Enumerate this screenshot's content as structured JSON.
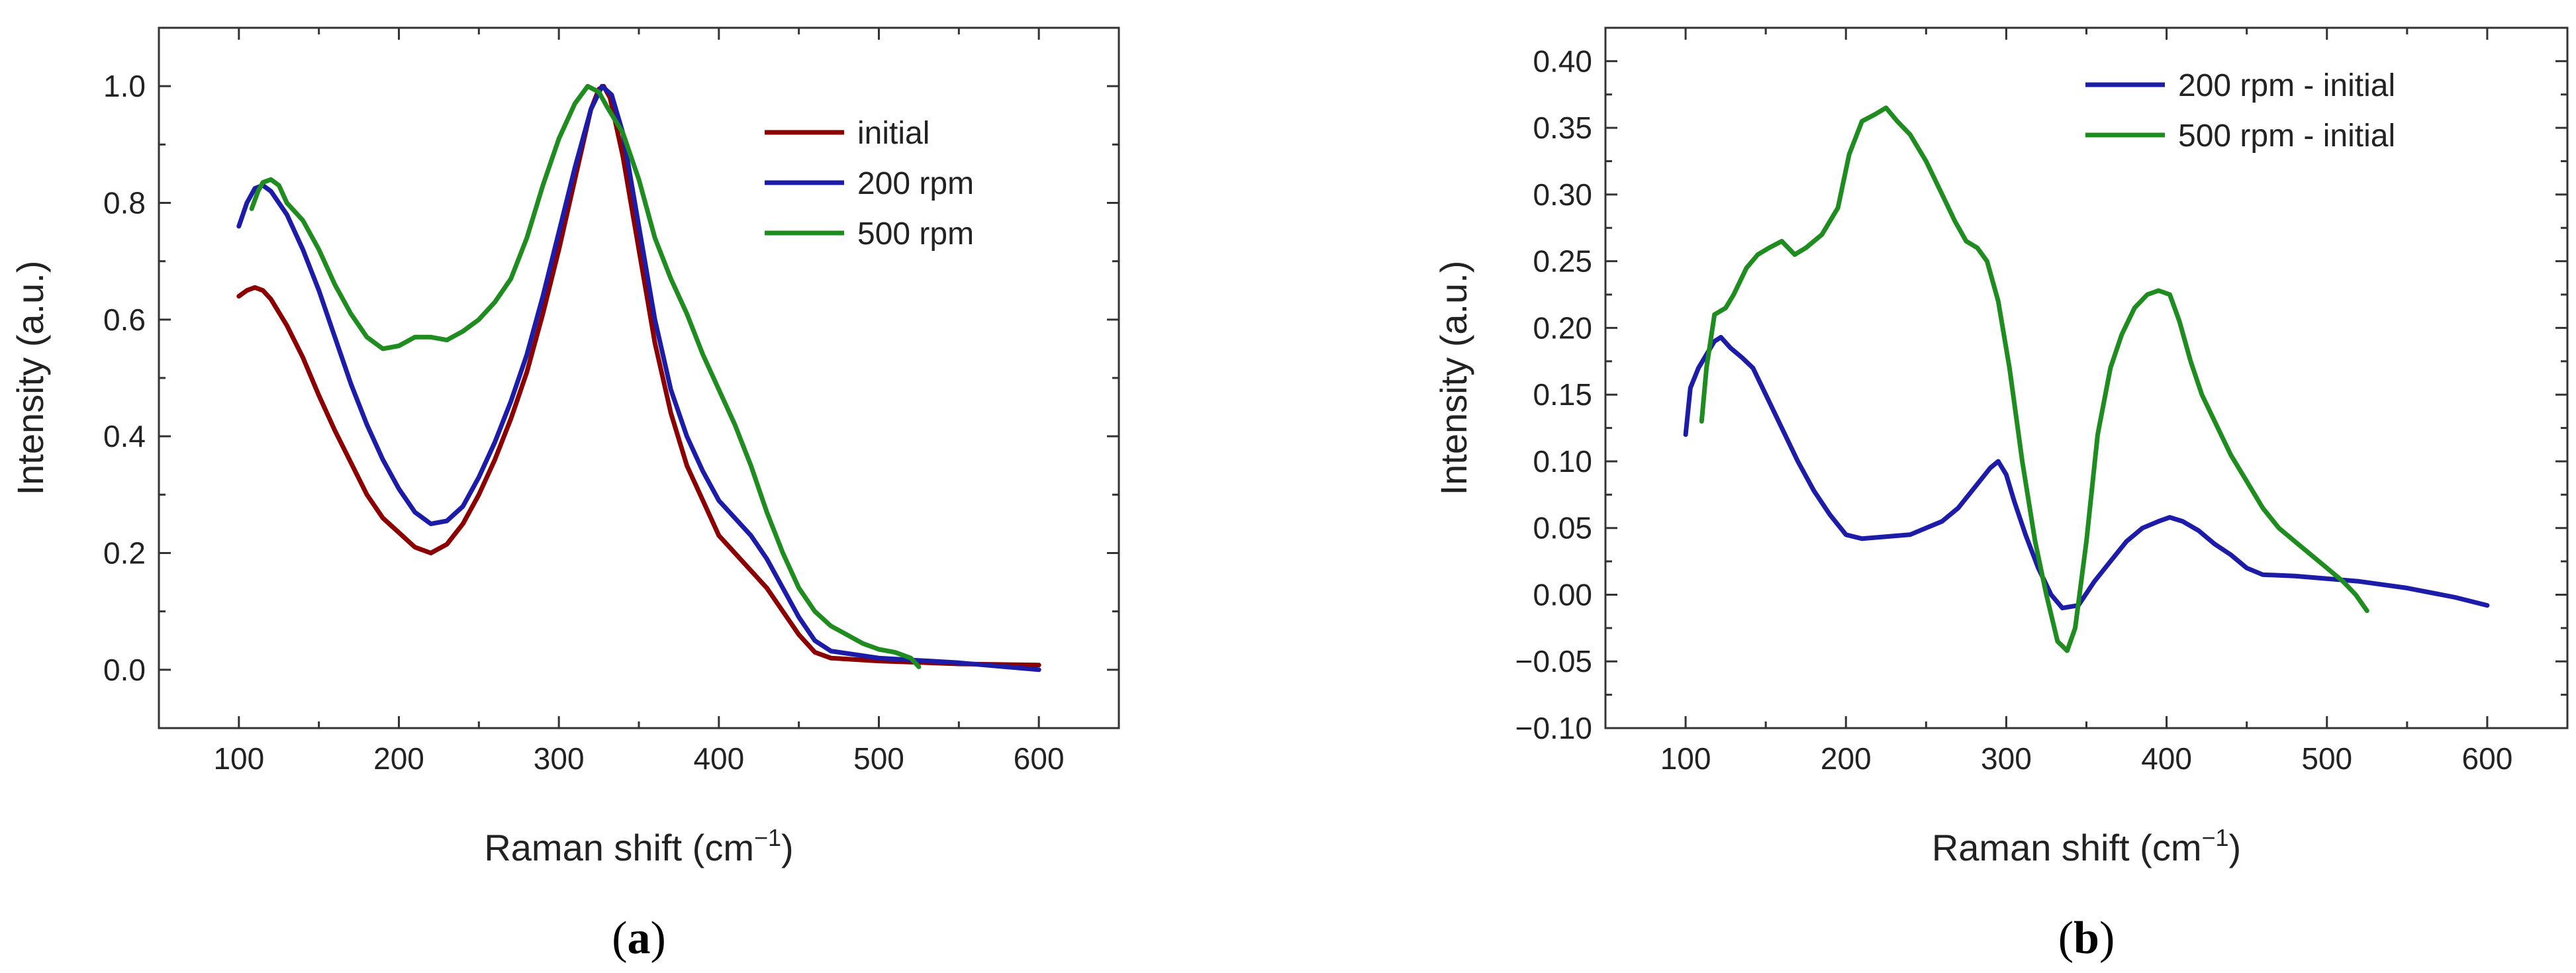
{
  "chart_data": [
    {
      "type": "line",
      "panel_label": "a",
      "xlabel": "Raman shift (cm",
      "xlabel_sup": "−1",
      "xlabel_close": ")",
      "ylabel": "Intensity (a.u.)",
      "xlim": [
        50,
        650
      ],
      "ylim": [
        -0.1,
        1.1
      ],
      "xticks": [
        100,
        200,
        300,
        400,
        500,
        600
      ],
      "yticks": [
        0.0,
        0.2,
        0.4,
        0.6,
        0.8,
        1.0
      ],
      "ytick_labels": [
        "0.0",
        "0.2",
        "0.4",
        "0.6",
        "0.8",
        "1.0"
      ],
      "legend_position": "upper-right",
      "series": [
        {
          "name": "initial",
          "color": "#8b0000",
          "points": [
            [
              100,
              0.64
            ],
            [
              105,
              0.65
            ],
            [
              110,
              0.655
            ],
            [
              115,
              0.65
            ],
            [
              120,
              0.635
            ],
            [
              130,
              0.59
            ],
            [
              140,
              0.535
            ],
            [
              150,
              0.47
            ],
            [
              160,
              0.41
            ],
            [
              170,
              0.355
            ],
            [
              180,
              0.3
            ],
            [
              190,
              0.26
            ],
            [
              200,
              0.235
            ],
            [
              210,
              0.21
            ],
            [
              220,
              0.2
            ],
            [
              230,
              0.215
            ],
            [
              240,
              0.25
            ],
            [
              250,
              0.3
            ],
            [
              260,
              0.36
            ],
            [
              270,
              0.43
            ],
            [
              280,
              0.51
            ],
            [
              290,
              0.61
            ],
            [
              300,
              0.72
            ],
            [
              310,
              0.84
            ],
            [
              320,
              0.96
            ],
            [
              325,
              0.995
            ],
            [
              328,
              1.0
            ],
            [
              332,
              0.98
            ],
            [
              340,
              0.88
            ],
            [
              350,
              0.72
            ],
            [
              360,
              0.56
            ],
            [
              370,
              0.44
            ],
            [
              380,
              0.35
            ],
            [
              390,
              0.29
            ],
            [
              400,
              0.23
            ],
            [
              410,
              0.2
            ],
            [
              420,
              0.17
            ],
            [
              430,
              0.14
            ],
            [
              440,
              0.1
            ],
            [
              450,
              0.06
            ],
            [
              460,
              0.03
            ],
            [
              470,
              0.02
            ],
            [
              500,
              0.015
            ],
            [
              550,
              0.01
            ],
            [
              600,
              0.008
            ]
          ]
        },
        {
          "name": "200 rpm",
          "color": "#1c1ca8",
          "points": [
            [
              100,
              0.76
            ],
            [
              105,
              0.8
            ],
            [
              110,
              0.825
            ],
            [
              115,
              0.83
            ],
            [
              120,
              0.82
            ],
            [
              130,
              0.78
            ],
            [
              140,
              0.72
            ],
            [
              150,
              0.65
            ],
            [
              160,
              0.57
            ],
            [
              170,
              0.49
            ],
            [
              180,
              0.42
            ],
            [
              190,
              0.36
            ],
            [
              200,
              0.31
            ],
            [
              210,
              0.27
            ],
            [
              220,
              0.25
            ],
            [
              230,
              0.255
            ],
            [
              240,
              0.28
            ],
            [
              250,
              0.33
            ],
            [
              260,
              0.39
            ],
            [
              270,
              0.46
            ],
            [
              280,
              0.54
            ],
            [
              290,
              0.64
            ],
            [
              300,
              0.75
            ],
            [
              310,
              0.86
            ],
            [
              320,
              0.96
            ],
            [
              327,
              1.0
            ],
            [
              333,
              0.985
            ],
            [
              340,
              0.92
            ],
            [
              350,
              0.76
            ],
            [
              360,
              0.6
            ],
            [
              370,
              0.48
            ],
            [
              380,
              0.4
            ],
            [
              390,
              0.34
            ],
            [
              400,
              0.29
            ],
            [
              410,
              0.26
            ],
            [
              420,
              0.23
            ],
            [
              430,
              0.19
            ],
            [
              440,
              0.14
            ],
            [
              450,
              0.09
            ],
            [
              460,
              0.05
            ],
            [
              470,
              0.032
            ],
            [
              500,
              0.02
            ],
            [
              550,
              0.012
            ],
            [
              600,
              0.0
            ]
          ]
        },
        {
          "name": "500 rpm",
          "color": "#1f8c1f",
          "points": [
            [
              108,
              0.79
            ],
            [
              112,
              0.82
            ],
            [
              115,
              0.835
            ],
            [
              120,
              0.84
            ],
            [
              125,
              0.83
            ],
            [
              130,
              0.8
            ],
            [
              140,
              0.77
            ],
            [
              150,
              0.72
            ],
            [
              160,
              0.66
            ],
            [
              170,
              0.61
            ],
            [
              180,
              0.57
            ],
            [
              190,
              0.55
            ],
            [
              200,
              0.555
            ],
            [
              210,
              0.57
            ],
            [
              220,
              0.57
            ],
            [
              230,
              0.565
            ],
            [
              240,
              0.58
            ],
            [
              250,
              0.6
            ],
            [
              260,
              0.63
            ],
            [
              270,
              0.67
            ],
            [
              280,
              0.74
            ],
            [
              290,
              0.83
            ],
            [
              300,
              0.91
            ],
            [
              310,
              0.97
            ],
            [
              318,
              1.0
            ],
            [
              325,
              0.99
            ],
            [
              330,
              0.965
            ],
            [
              340,
              0.92
            ],
            [
              350,
              0.84
            ],
            [
              360,
              0.74
            ],
            [
              370,
              0.67
            ],
            [
              380,
              0.61
            ],
            [
              390,
              0.54
            ],
            [
              400,
              0.48
            ],
            [
              410,
              0.42
            ],
            [
              420,
              0.35
            ],
            [
              430,
              0.27
            ],
            [
              440,
              0.2
            ],
            [
              450,
              0.14
            ],
            [
              460,
              0.1
            ],
            [
              470,
              0.075
            ],
            [
              480,
              0.06
            ],
            [
              490,
              0.045
            ],
            [
              500,
              0.035
            ],
            [
              510,
              0.03
            ],
            [
              520,
              0.02
            ],
            [
              525,
              0.005
            ]
          ]
        }
      ]
    },
    {
      "type": "line",
      "panel_label": "b",
      "xlabel": "Raman shift (cm",
      "xlabel_sup": "−1",
      "xlabel_close": ")",
      "ylabel": "Intensity (a.u.)",
      "xlim": [
        50,
        650
      ],
      "ylim": [
        -0.1,
        0.425
      ],
      "xticks": [
        100,
        200,
        300,
        400,
        500,
        600
      ],
      "yticks": [
        -0.1,
        -0.05,
        0.0,
        0.05,
        0.1,
        0.15,
        0.2,
        0.25,
        0.3,
        0.35,
        0.4
      ],
      "ytick_labels": [
        "−0.10",
        "−0.05",
        "0.00",
        "0.05",
        "0.10",
        "0.15",
        "0.20",
        "0.25",
        "0.30",
        "0.35",
        "0.40"
      ],
      "legend_position": "upper-right",
      "series": [
        {
          "name": "200 rpm - initial",
          "color": "#1c1ca8",
          "points": [
            [
              100,
              0.12
            ],
            [
              103,
              0.155
            ],
            [
              108,
              0.17
            ],
            [
              113,
              0.18
            ],
            [
              118,
              0.19
            ],
            [
              122,
              0.193
            ],
            [
              128,
              0.185
            ],
            [
              135,
              0.178
            ],
            [
              142,
              0.17
            ],
            [
              150,
              0.15
            ],
            [
              160,
              0.125
            ],
            [
              170,
              0.1
            ],
            [
              180,
              0.078
            ],
            [
              190,
              0.06
            ],
            [
              200,
              0.045
            ],
            [
              210,
              0.042
            ],
            [
              220,
              0.043
            ],
            [
              230,
              0.044
            ],
            [
              240,
              0.045
            ],
            [
              250,
              0.05
            ],
            [
              260,
              0.055
            ],
            [
              270,
              0.065
            ],
            [
              280,
              0.08
            ],
            [
              290,
              0.095
            ],
            [
              295,
              0.1
            ],
            [
              300,
              0.09
            ],
            [
              305,
              0.07
            ],
            [
              312,
              0.045
            ],
            [
              320,
              0.02
            ],
            [
              328,
              0.0
            ],
            [
              335,
              -0.01
            ],
            [
              345,
              -0.008
            ],
            [
              355,
              0.01
            ],
            [
              365,
              0.025
            ],
            [
              375,
              0.04
            ],
            [
              385,
              0.05
            ],
            [
              395,
              0.055
            ],
            [
              402,
              0.058
            ],
            [
              410,
              0.055
            ],
            [
              420,
              0.048
            ],
            [
              430,
              0.038
            ],
            [
              440,
              0.03
            ],
            [
              450,
              0.02
            ],
            [
              460,
              0.015
            ],
            [
              480,
              0.014
            ],
            [
              500,
              0.012
            ],
            [
              520,
              0.01
            ],
            [
              550,
              0.005
            ],
            [
              580,
              -0.002
            ],
            [
              600,
              -0.008
            ]
          ]
        },
        {
          "name": "500 rpm - initial",
          "color": "#1f8c1f",
          "points": [
            [
              110,
              0.13
            ],
            [
              113,
              0.17
            ],
            [
              118,
              0.21
            ],
            [
              125,
              0.215
            ],
            [
              130,
              0.225
            ],
            [
              138,
              0.245
            ],
            [
              145,
              0.255
            ],
            [
              152,
              0.26
            ],
            [
              160,
              0.265
            ],
            [
              168,
              0.255
            ],
            [
              175,
              0.26
            ],
            [
              185,
              0.27
            ],
            [
              195,
              0.29
            ],
            [
              202,
              0.33
            ],
            [
              210,
              0.355
            ],
            [
              218,
              0.36
            ],
            [
              225,
              0.365
            ],
            [
              232,
              0.355
            ],
            [
              240,
              0.345
            ],
            [
              250,
              0.325
            ],
            [
              260,
              0.3
            ],
            [
              268,
              0.28
            ],
            [
              275,
              0.265
            ],
            [
              282,
              0.26
            ],
            [
              288,
              0.25
            ],
            [
              295,
              0.22
            ],
            [
              302,
              0.17
            ],
            [
              310,
              0.1
            ],
            [
              318,
              0.04
            ],
            [
              325,
              0.0
            ],
            [
              332,
              -0.035
            ],
            [
              338,
              -0.042
            ],
            [
              343,
              -0.025
            ],
            [
              350,
              0.04
            ],
            [
              357,
              0.12
            ],
            [
              365,
              0.17
            ],
            [
              372,
              0.195
            ],
            [
              380,
              0.215
            ],
            [
              388,
              0.225
            ],
            [
              395,
              0.228
            ],
            [
              402,
              0.225
            ],
            [
              408,
              0.205
            ],
            [
              415,
              0.175
            ],
            [
              422,
              0.15
            ],
            [
              430,
              0.13
            ],
            [
              440,
              0.105
            ],
            [
              450,
              0.085
            ],
            [
              460,
              0.065
            ],
            [
              470,
              0.05
            ],
            [
              480,
              0.04
            ],
            [
              490,
              0.03
            ],
            [
              500,
              0.02
            ],
            [
              510,
              0.01
            ],
            [
              518,
              0.0
            ],
            [
              525,
              -0.012
            ]
          ]
        }
      ]
    }
  ]
}
